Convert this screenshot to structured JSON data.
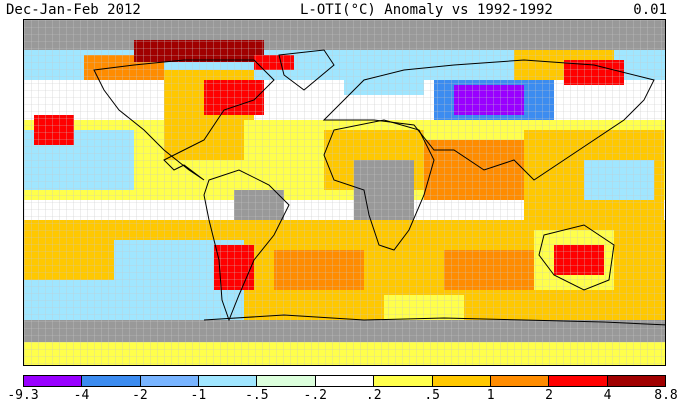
{
  "title": {
    "left": "Dec-Jan-Feb 2012",
    "center": "L-OTI(°C) Anomaly vs 1992-1992",
    "right": "0.01"
  },
  "legend": {
    "labels": [
      "-9.3",
      "-4",
      "-2",
      "-1",
      "-.5",
      "-.2",
      ".2",
      ".5",
      "1",
      "2",
      "4",
      "8.8"
    ],
    "colors": [
      "#9900ff",
      "#3c8cf0",
      "#78b4ff",
      "#a0e6ff",
      "#dcffdc",
      "#ffffff",
      "#ffff4b",
      "#ffc800",
      "#ff8c00",
      "#ff0000",
      "#a00000"
    ]
  },
  "map": {
    "projection": "equirectangular",
    "nodata_color": "#999999"
  }
}
